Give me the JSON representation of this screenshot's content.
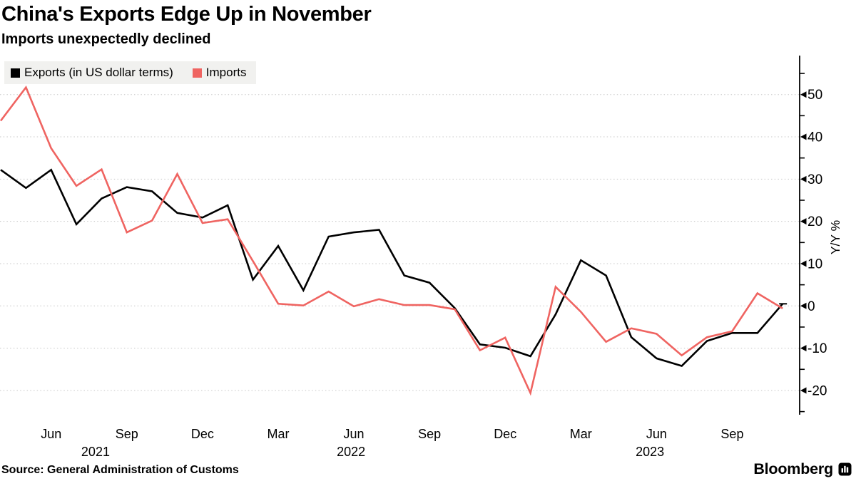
{
  "header": {
    "title": "China's Exports Edge Up in November",
    "subtitle": "Imports unexpectedly declined"
  },
  "legend": {
    "items": [
      {
        "label": "Exports (in US dollar terms)",
        "color": "#000000"
      },
      {
        "label": "Imports",
        "color": "#ef6461"
      }
    ]
  },
  "footer": {
    "source": "Source: General Administration of Customs",
    "brand": "Bloomberg"
  },
  "colors": {
    "exports_line": "#000000",
    "imports_line": "#ef6461",
    "grid": "#c7c7c7",
    "axis": "#000000",
    "legend_bg": "#f1f1ef",
    "background": "#ffffff"
  },
  "chart_data": {
    "type": "line",
    "title": "China's Exports Edge Up in November",
    "subtitle": "Imports unexpectedly declined",
    "ylabel": "Y/Y %",
    "ylim": [
      -25,
      55
    ],
    "grid": "horizontal dashed",
    "legend_position": "top-left",
    "yticks_major": [
      50,
      40,
      30,
      20,
      10,
      0,
      -10,
      -20
    ],
    "yticks_minor": [
      55,
      45,
      35,
      25,
      15,
      5,
      -5,
      -15,
      -25
    ],
    "x_months": [
      "Apr 2021",
      "May 2021",
      "Jun 2021",
      "Jul 2021",
      "Aug 2021",
      "Sep 2021",
      "Oct 2021",
      "Nov 2021",
      "Dec 2021",
      "Jan 2022",
      "Feb 2022",
      "Mar 2022",
      "Apr 2022",
      "May 2022",
      "Jun 2022",
      "Jul 2022",
      "Aug 2022",
      "Sep 2022",
      "Oct 2022",
      "Nov 2022",
      "Dec 2022",
      "Jan 2023",
      "Feb 2023",
      "Mar 2023",
      "Apr 2023",
      "May 2023",
      "Jun 2023",
      "Jul 2023",
      "Aug 2023",
      "Sep 2023",
      "Oct 2023",
      "Nov 2023"
    ],
    "x_tick_labels": [
      {
        "label": "Jun",
        "index": 2
      },
      {
        "label": "Sep",
        "index": 5
      },
      {
        "label": "Dec",
        "index": 8
      },
      {
        "label": "Mar",
        "index": 11
      },
      {
        "label": "Jun",
        "index": 14
      },
      {
        "label": "Sep",
        "index": 17
      },
      {
        "label": "Dec",
        "index": 20
      },
      {
        "label": "Mar",
        "index": 23
      },
      {
        "label": "Jun",
        "index": 26
      },
      {
        "label": "Sep",
        "index": 29
      }
    ],
    "year_labels": [
      {
        "label": "2021",
        "index": 3.76
      },
      {
        "label": "2022",
        "index": 13.89
      },
      {
        "label": "2023",
        "index": 25.74
      }
    ],
    "series": [
      {
        "name": "Exports (in US dollar terms)",
        "color": "#000000",
        "values": [
          32.2,
          27.9,
          32.2,
          19.3,
          25.4,
          28.1,
          27.1,
          22.0,
          20.9,
          23.8,
          6.2,
          14.2,
          3.7,
          16.4,
          17.4,
          18.0,
          7.2,
          5.5,
          -0.5,
          -9.1,
          -9.9,
          -11.9,
          -2.0,
          10.8,
          7.2,
          -7.4,
          -12.4,
          -14.2,
          -8.3,
          -6.4,
          -6.4,
          0.5
        ],
        "end_marker": true
      },
      {
        "name": "Imports",
        "color": "#ef6461",
        "values": [
          43.8,
          51.7,
          37.3,
          28.4,
          32.3,
          17.4,
          20.2,
          31.2,
          19.6,
          20.5,
          10.6,
          0.5,
          0.1,
          3.4,
          -0.1,
          1.6,
          0.2,
          0.2,
          -0.8,
          -10.5,
          -7.5,
          -20.6,
          4.5,
          -1.4,
          -8.5,
          -5.3,
          -6.6,
          -11.7,
          -7.4,
          -6.0,
          3.0,
          -0.6
        ],
        "end_marker": false
      }
    ]
  }
}
